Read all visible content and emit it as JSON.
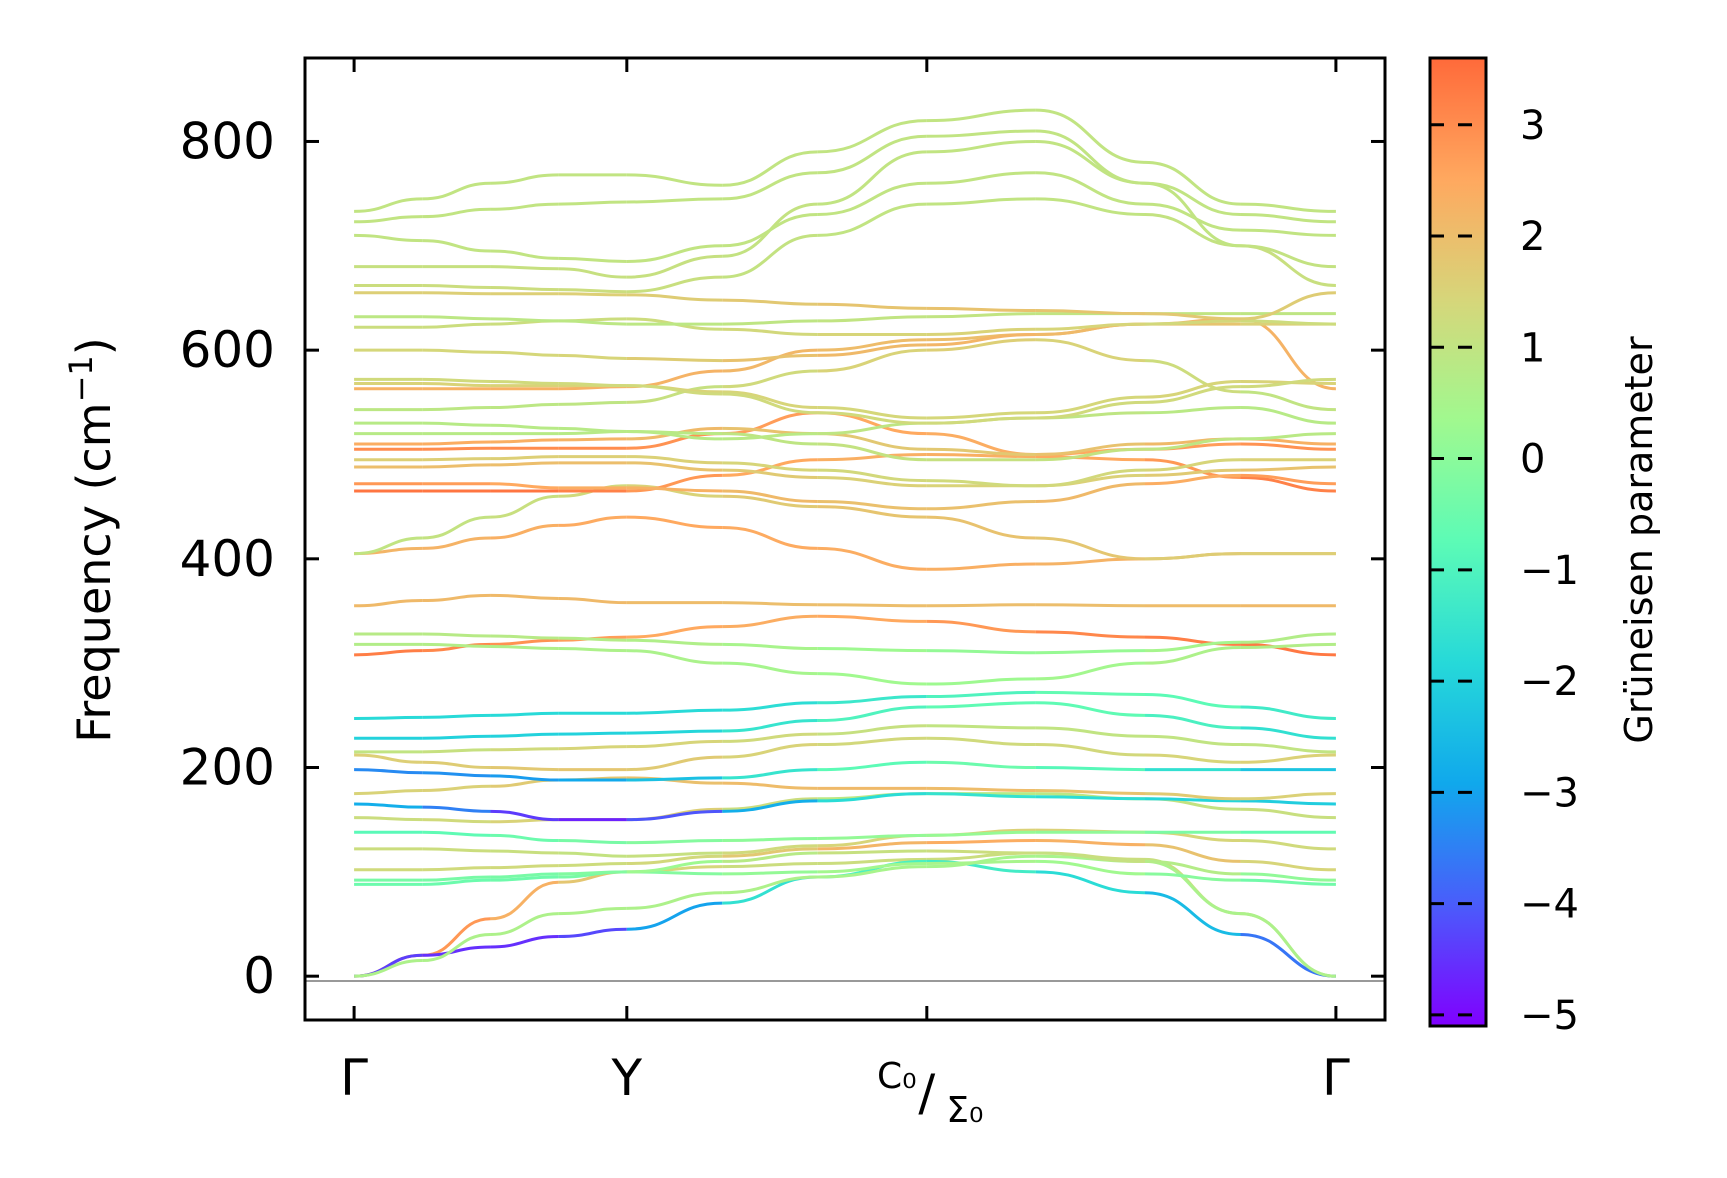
{
  "chart_data": {
    "type": "line",
    "title": "",
    "ylabel": "Frequency (cm",
    "ylabel_sup": "−1",
    "ylabel_close": ")",
    "ylim": [
      -42,
      880
    ],
    "yticks": [
      0,
      200,
      400,
      600,
      800
    ],
    "x_ticks": [
      {
        "pos": 0,
        "label": "Γ"
      },
      {
        "pos": 1,
        "label": "Y"
      },
      {
        "pos": 2.1,
        "label_top": "C₀",
        "label_bottom": "Σ₀",
        "slash": "/"
      },
      {
        "pos": 3.6,
        "label": "Γ"
      }
    ],
    "xlim": [
      -0.18,
      3.78
    ],
    "colorbar": {
      "label": "Grüneisen parameter",
      "range": [
        -5.1,
        3.6
      ],
      "ticks": [
        "3",
        "2",
        "1",
        "0",
        "−1",
        "−2",
        "−3",
        "−4",
        "−5"
      ],
      "tick_values": [
        3,
        2,
        1,
        0,
        -1,
        -2,
        -3,
        -4,
        -5
      ],
      "colormap": "rainbow"
    },
    "band_segments_x": [
      0,
      0.25,
      0.5,
      0.75,
      1.0,
      1.35,
      1.7,
      2.1,
      2.5,
      2.9,
      3.25,
      3.6
    ],
    "bands": [
      {
        "freq": [
          0,
          20,
          55,
          90,
          100,
          105,
          108,
          112,
          118,
          112,
          60,
          0
        ],
        "g": [
          3.2,
          3.0,
          2.6,
          2.0,
          1.6,
          1.2,
          1.2,
          1.2,
          1.2,
          1.2,
          1.1,
          1.0
        ]
      },
      {
        "freq": [
          0,
          20,
          28,
          38,
          45,
          70,
          95,
          110,
          100,
          80,
          40,
          0
        ],
        "g": [
          -4.2,
          -4.5,
          -4.6,
          -4.5,
          -4.0,
          -2.0,
          -1.2,
          -1.0,
          -1.5,
          -2.0,
          -3.0,
          -4.3
        ]
      },
      {
        "freq": [
          0,
          15,
          40,
          60,
          65,
          80,
          95,
          105,
          115,
          110,
          60,
          0
        ],
        "g": [
          0.6,
          0.6,
          0.6,
          0.6,
          0.6,
          0.6,
          0.6,
          0.4,
          0.5,
          0.5,
          0.6,
          0.6
        ]
      },
      {
        "freq": [
          88,
          88,
          92,
          95,
          100,
          98,
          100,
          108,
          110,
          98,
          92,
          88
        ],
        "g": [
          -0.5,
          -0.5,
          -0.5,
          -0.4,
          -0.2,
          0.0,
          0.3,
          0.5,
          0.5,
          0.2,
          -0.3,
          -0.5
        ]
      },
      {
        "freq": [
          92,
          92,
          95,
          98,
          100,
          110,
          118,
          120,
          118,
          110,
          98,
          92
        ],
        "g": [
          -0.3,
          -0.3,
          -0.3,
          -0.3,
          0.0,
          0.6,
          1.0,
          1.2,
          1.2,
          1.0,
          0.5,
          -0.3
        ]
      },
      {
        "freq": [
          102,
          102,
          104,
          106,
          108,
          115,
          122,
          128,
          130,
          126,
          110,
          102
        ],
        "g": [
          1.3,
          1.3,
          1.3,
          1.3,
          1.2,
          1.5,
          2.0,
          2.4,
          2.4,
          2.2,
          1.6,
          1.3
        ]
      },
      {
        "freq": [
          122,
          122,
          120,
          118,
          115,
          118,
          125,
          135,
          140,
          138,
          130,
          122
        ],
        "g": [
          1.2,
          1.2,
          1.2,
          1.1,
          1.0,
          1.2,
          1.4,
          1.5,
          1.6,
          1.5,
          1.4,
          1.2
        ]
      },
      {
        "freq": [
          138,
          138,
          135,
          130,
          128,
          130,
          132,
          135,
          138,
          138,
          138,
          138
        ],
        "g": [
          -0.8,
          -0.8,
          -0.6,
          -0.4,
          -0.2,
          0.0,
          0.1,
          0.2,
          0.2,
          0.0,
          -0.5,
          -0.8
        ]
      },
      {
        "freq": [
          152,
          150,
          148,
          150,
          150,
          160,
          170,
          175,
          175,
          170,
          160,
          152
        ],
        "g": [
          1.2,
          1.2,
          1.4,
          1.6,
          1.8,
          1.4,
          1.0,
          0.8,
          0.8,
          1.0,
          1.1,
          1.2
        ]
      },
      {
        "freq": [
          165,
          162,
          158,
          150,
          150,
          158,
          168,
          175,
          172,
          170,
          168,
          165
        ],
        "g": [
          -2.6,
          -3.0,
          -4.0,
          -4.8,
          -4.6,
          -3.6,
          -2.0,
          -1.5,
          -1.6,
          -1.8,
          -2.0,
          -2.2
        ]
      },
      {
        "freq": [
          175,
          178,
          182,
          188,
          190,
          185,
          180,
          180,
          178,
          175,
          170,
          175
        ],
        "g": [
          1.5,
          1.5,
          1.6,
          1.8,
          1.9,
          2.0,
          2.1,
          2.1,
          2.0,
          1.8,
          1.6,
          1.5
        ]
      },
      {
        "freq": [
          198,
          195,
          192,
          188,
          188,
          190,
          198,
          205,
          200,
          198,
          198,
          198
        ],
        "g": [
          -3.4,
          -3.3,
          -3.2,
          -3.0,
          -2.8,
          -2.0,
          -1.0,
          -0.5,
          -0.5,
          -1.2,
          -2.0,
          -2.6
        ]
      },
      {
        "freq": [
          212,
          205,
          200,
          198,
          198,
          210,
          222,
          228,
          222,
          212,
          205,
          212
        ],
        "g": [
          1.6,
          1.6,
          1.7,
          1.8,
          1.8,
          1.6,
          1.4,
          1.3,
          1.3,
          1.4,
          1.5,
          1.6
        ]
      },
      {
        "freq": [
          215,
          215,
          217,
          218,
          220,
          225,
          232,
          240,
          238,
          230,
          222,
          215
        ],
        "g": [
          1.0,
          1.0,
          1.2,
          1.4,
          1.5,
          1.4,
          1.2,
          1.0,
          1.0,
          1.0,
          1.0,
          1.0
        ]
      },
      {
        "freq": [
          228,
          228,
          230,
          232,
          233,
          235,
          245,
          258,
          262,
          250,
          238,
          228
        ],
        "g": [
          -2.0,
          -2.0,
          -2.0,
          -2.0,
          -2.0,
          -1.8,
          -1.2,
          -0.8,
          -0.6,
          -0.8,
          -1.4,
          -1.8
        ]
      },
      {
        "freq": [
          247,
          248,
          250,
          252,
          252,
          255,
          262,
          268,
          272,
          270,
          258,
          247
        ],
        "g": [
          -1.8,
          -1.8,
          -1.8,
          -1.8,
          -1.8,
          -1.8,
          -1.6,
          -1.2,
          -0.8,
          -0.5,
          -1.0,
          -1.6
        ]
      },
      {
        "freq": [
          308,
          312,
          318,
          322,
          325,
          335,
          345,
          340,
          330,
          325,
          318,
          308
        ],
        "g": [
          3.3,
          3.2,
          3.0,
          2.8,
          2.6,
          2.4,
          2.4,
          2.6,
          3.0,
          3.2,
          3.3,
          3.4
        ]
      },
      {
        "freq": [
          318,
          318,
          316,
          314,
          312,
          300,
          290,
          280,
          285,
          300,
          315,
          318
        ],
        "g": [
          0.7,
          0.7,
          0.7,
          0.6,
          0.6,
          0.5,
          0.4,
          0.3,
          0.3,
          0.5,
          0.7,
          0.7
        ]
      },
      {
        "freq": [
          328,
          328,
          326,
          324,
          322,
          318,
          314,
          312,
          310,
          312,
          320,
          328
        ],
        "g": [
          0.8,
          0.8,
          0.8,
          0.8,
          0.7,
          0.6,
          0.4,
          0.2,
          0.1,
          0.3,
          0.6,
          0.8
        ]
      },
      {
        "freq": [
          355,
          360,
          365,
          362,
          358,
          358,
          356,
          355,
          356,
          355,
          355,
          355
        ],
        "g": [
          2.1,
          2.1,
          2.1,
          2.1,
          2.1,
          2.0,
          2.0,
          2.0,
          2.0,
          2.0,
          2.1,
          2.1
        ]
      },
      {
        "freq": [
          405,
          410,
          420,
          432,
          440,
          430,
          410,
          390,
          395,
          400,
          405,
          405
        ],
        "g": [
          2.2,
          2.2,
          2.3,
          2.4,
          2.5,
          2.5,
          2.4,
          2.4,
          2.3,
          2.2,
          2.2,
          2.2
        ]
      },
      {
        "freq": [
          405,
          420,
          440,
          460,
          470,
          460,
          450,
          440,
          420,
          400,
          405,
          405
        ],
        "g": [
          1.0,
          1.0,
          1.1,
          1.2,
          1.4,
          1.6,
          1.8,
          1.9,
          1.9,
          1.7,
          1.6,
          1.6
        ]
      },
      {
        "freq": [
          465,
          465,
          465,
          465,
          465,
          480,
          495,
          500,
          498,
          495,
          478,
          465
        ],
        "g": [
          3.4,
          3.4,
          3.4,
          3.4,
          3.0,
          2.6,
          2.4,
          2.3,
          2.4,
          2.6,
          3.0,
          3.4
        ]
      },
      {
        "freq": [
          472,
          472,
          472,
          468,
          468,
          465,
          455,
          448,
          455,
          472,
          480,
          472
        ],
        "g": [
          2.8,
          2.8,
          2.6,
          2.4,
          2.4,
          2.2,
          2.0,
          1.9,
          2.0,
          2.2,
          2.6,
          2.8
        ]
      },
      {
        "freq": [
          488,
          488,
          490,
          492,
          492,
          485,
          478,
          470,
          470,
          480,
          485,
          488
        ],
        "g": [
          2.0,
          2.0,
          2.0,
          2.0,
          2.0,
          1.8,
          1.6,
          1.5,
          1.5,
          1.6,
          1.8,
          2.0
        ]
      },
      {
        "freq": [
          495,
          495,
          496,
          498,
          498,
          492,
          485,
          475,
          470,
          485,
          495,
          495
        ],
        "g": [
          1.6,
          1.6,
          1.6,
          1.6,
          1.6,
          1.5,
          1.4,
          1.3,
          1.3,
          1.4,
          1.5,
          1.6
        ]
      },
      {
        "freq": [
          505,
          505,
          506,
          506,
          506,
          520,
          540,
          520,
          500,
          505,
          510,
          505
        ],
        "g": [
          3.0,
          3.0,
          3.0,
          3.0,
          3.0,
          2.8,
          2.6,
          2.4,
          2.4,
          2.6,
          2.8,
          3.0
        ]
      },
      {
        "freq": [
          510,
          510,
          512,
          514,
          515,
          525,
          520,
          505,
          500,
          510,
          515,
          510
        ],
        "g": [
          2.4,
          2.4,
          2.4,
          2.3,
          2.2,
          2.0,
          1.8,
          1.7,
          1.8,
          2.0,
          2.2,
          2.4
        ]
      },
      {
        "freq": [
          520,
          520,
          520,
          520,
          522,
          520,
          510,
          495,
          495,
          505,
          515,
          520
        ],
        "g": [
          0.8,
          0.8,
          0.8,
          0.8,
          0.8,
          0.9,
          1.0,
          1.1,
          1.1,
          1.0,
          0.9,
          0.8
        ]
      },
      {
        "freq": [
          530,
          530,
          528,
          525,
          522,
          515,
          520,
          530,
          535,
          540,
          545,
          530
        ],
        "g": [
          0.8,
          0.8,
          0.8,
          0.8,
          0.8,
          0.8,
          0.9,
          1.0,
          1.0,
          0.9,
          0.8,
          0.8
        ]
      },
      {
        "freq": [
          543,
          543,
          545,
          548,
          550,
          565,
          580,
          600,
          610,
          590,
          560,
          543
        ],
        "g": [
          0.9,
          0.9,
          0.9,
          0.9,
          1.0,
          1.2,
          1.4,
          1.6,
          1.6,
          1.4,
          1.1,
          0.9
        ]
      },
      {
        "freq": [
          563,
          563,
          563,
          563,
          565,
          580,
          600,
          610,
          615,
          625,
          630,
          563
        ],
        "g": [
          2.3,
          2.3,
          2.3,
          2.3,
          2.3,
          2.2,
          2.1,
          2.0,
          2.0,
          2.1,
          2.2,
          2.3
        ]
      },
      {
        "freq": [
          568,
          568,
          566,
          566,
          566,
          560,
          545,
          535,
          540,
          555,
          570,
          568
        ],
        "g": [
          1.5,
          1.5,
          1.5,
          1.5,
          1.5,
          1.5,
          1.4,
          1.4,
          1.4,
          1.4,
          1.5,
          1.5
        ]
      },
      {
        "freq": [
          572,
          572,
          570,
          568,
          566,
          558,
          540,
          530,
          535,
          550,
          565,
          572
        ],
        "g": [
          1.3,
          1.3,
          1.3,
          1.3,
          1.3,
          1.3,
          1.3,
          1.3,
          1.3,
          1.3,
          1.3,
          1.3
        ]
      },
      {
        "freq": [
          600,
          600,
          598,
          595,
          592,
          590,
          595,
          605,
          615,
          625,
          625,
          625
        ],
        "g": [
          1.4,
          1.4,
          1.4,
          1.4,
          1.5,
          1.8,
          2.0,
          2.2,
          2.2,
          2.0,
          1.7,
          1.4
        ]
      },
      {
        "freq": [
          622,
          622,
          625,
          628,
          630,
          620,
          615,
          615,
          620,
          625,
          628,
          625
        ],
        "g": [
          1.2,
          1.2,
          1.2,
          1.2,
          1.2,
          1.3,
          1.4,
          1.5,
          1.5,
          1.4,
          1.3,
          1.2
        ]
      },
      {
        "freq": [
          632,
          632,
          630,
          628,
          625,
          625,
          628,
          632,
          635,
          635,
          635,
          635
        ],
        "g": [
          0.9,
          0.9,
          0.9,
          0.9,
          0.9,
          0.9,
          1.0,
          1.0,
          1.0,
          1.0,
          1.0,
          0.9
        ]
      },
      {
        "freq": [
          655,
          655,
          654,
          654,
          653,
          648,
          644,
          640,
          638,
          635,
          630,
          655
        ],
        "g": [
          1.6,
          1.6,
          1.6,
          1.6,
          1.6,
          1.7,
          1.8,
          1.9,
          1.9,
          1.8,
          1.7,
          1.6
        ]
      },
      {
        "freq": [
          662,
          662,
          660,
          658,
          656,
          670,
          710,
          740,
          745,
          730,
          700,
          662
        ],
        "g": [
          1.2,
          1.2,
          1.2,
          1.2,
          1.2,
          1.1,
          1.0,
          1.0,
          1.0,
          1.0,
          1.1,
          1.2
        ]
      },
      {
        "freq": [
          680,
          680,
          680,
          678,
          670,
          690,
          740,
          790,
          800,
          760,
          700,
          680
        ],
        "g": [
          1.1,
          1.1,
          1.1,
          1.1,
          1.1,
          1.1,
          1.0,
          1.0,
          1.0,
          1.0,
          1.0,
          1.1
        ]
      },
      {
        "freq": [
          710,
          705,
          695,
          688,
          685,
          700,
          730,
          760,
          770,
          740,
          715,
          710
        ],
        "g": [
          1.0,
          1.0,
          1.0,
          1.0,
          1.0,
          1.0,
          1.0,
          1.0,
          1.0,
          1.0,
          1.0,
          1.0
        ]
      },
      {
        "freq": [
          723,
          728,
          735,
          740,
          742,
          745,
          770,
          805,
          810,
          760,
          730,
          723
        ],
        "g": [
          1.0,
          1.0,
          1.0,
          1.0,
          1.0,
          1.0,
          1.0,
          1.0,
          1.0,
          1.0,
          1.0,
          1.0
        ]
      },
      {
        "freq": [
          733,
          745,
          760,
          768,
          768,
          758,
          790,
          820,
          830,
          780,
          740,
          733
        ],
        "g": [
          1.0,
          1.0,
          1.0,
          1.0,
          1.0,
          1.0,
          1.0,
          1.0,
          1.0,
          1.0,
          1.0,
          1.0
        ]
      }
    ]
  }
}
